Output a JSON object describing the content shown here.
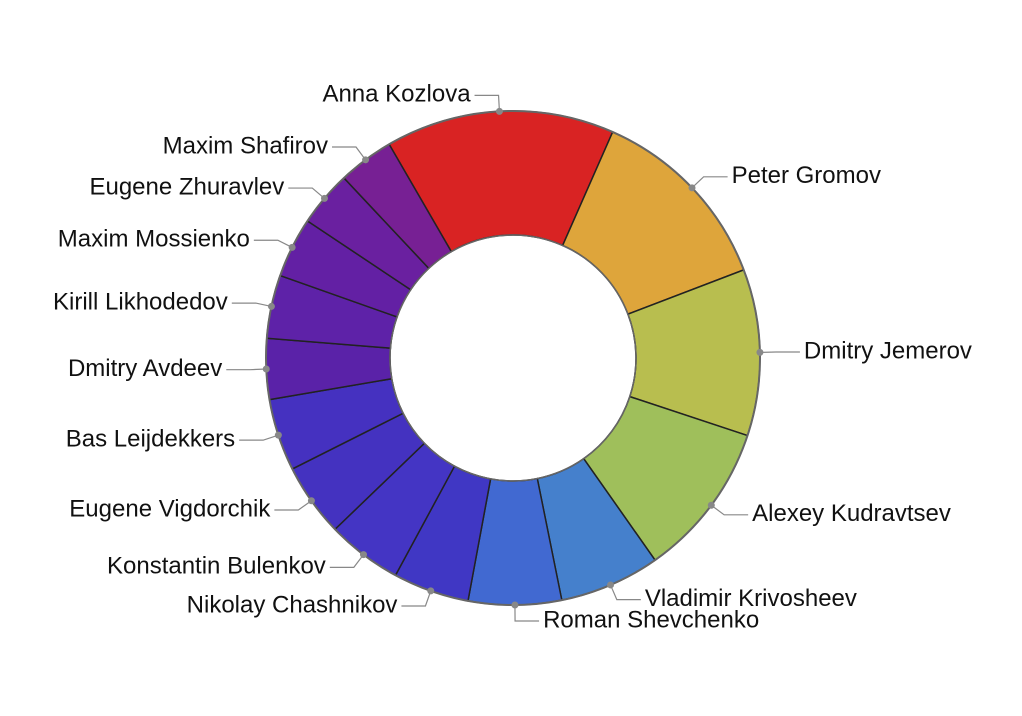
{
  "chart_data": {
    "type": "donut",
    "categories": [
      "Anna Kozlova",
      "Peter Gromov",
      "Dmitry Jemerov",
      "Alexey Kudravtsev",
      "Vladimir Krivosheev",
      "Roman Shevchenko",
      "Nikolay Chashnikov",
      "Konstantin Bulenkov",
      "Eugene Vigdorchik",
      "Bas Leijdekkers",
      "Dmitry Avdeev",
      "Kirill Likhodedov",
      "Maxim Mossienko",
      "Eugene Zhuravlev",
      "Maxim Shafirov"
    ],
    "values": [
      53.9,
      45.3,
      39.2,
      36.6,
      23.7,
      21.9,
      17.9,
      17.7,
      17.2,
      17,
      14.3,
      14.9,
      14.2,
      13.1,
      13.1
    ],
    "colors": [
      "#d92323",
      "#dea53b",
      "#b8be4f",
      "#9fbf5b",
      "#4580cc",
      "#4169d1",
      "#4037c4",
      "#4435c4",
      "#4432c0",
      "#4531c0",
      "#5a22a8",
      "#5e22a8",
      "#6320a4",
      "#6a20a0",
      "#772094"
    ]
  }
}
